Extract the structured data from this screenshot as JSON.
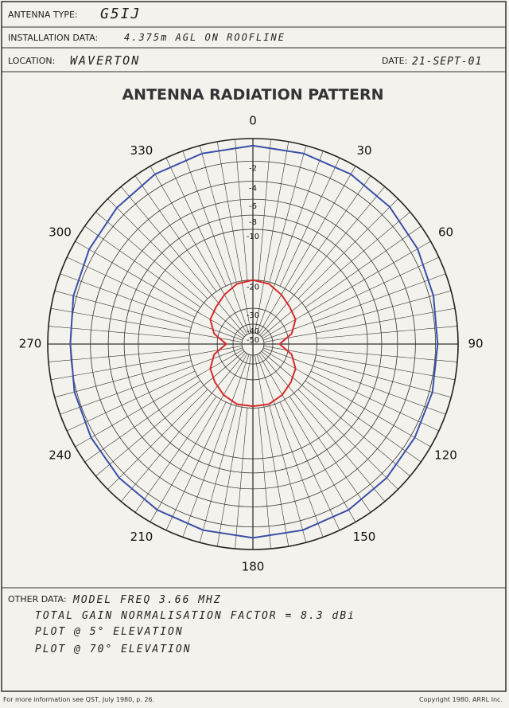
{
  "form": {
    "antenna_type_label": "ANTENNA TYPE:",
    "antenna_type": "G5IJ",
    "installation_label": "INSTALLATION DATA:",
    "installation": "4.375m AGL ON ROOFLINE",
    "location_label": "LOCATION:",
    "location": "WAVERTON",
    "date_label": "DATE:",
    "date": "21-SEPT-01",
    "other_label": "OTHER DATA:",
    "notes": [
      "MODEL FREQ   3.66 MHZ",
      "TOTAL GAIN NORMALISATION FACTOR = 8.3 dBi",
      "PLOT @ 5° ELEVATION",
      "PLOT @ 70° ELEVATION"
    ],
    "footer_left": "For more information see QST, July 1980, p. 26.",
    "footer_right": "Copyright 1980, ARRL Inc."
  },
  "chart_data": {
    "type": "polar",
    "title": "ANTENNA RADIATION PATTERN",
    "rscale": "arrl-log-periodic",
    "rmax": 0,
    "rticks": [
      -2,
      -4,
      -6,
      -8,
      -10,
      -20,
      -30,
      -40,
      -50
    ],
    "angle_ticks": [
      0,
      30,
      60,
      90,
      120,
      150,
      180,
      210,
      240,
      270,
      300,
      330
    ],
    "theta": [
      0,
      15,
      30,
      45,
      60,
      75,
      90,
      105,
      120,
      135,
      150,
      165,
      180,
      195,
      210,
      225,
      240,
      255,
      270,
      285,
      300,
      315,
      330,
      345
    ],
    "series": [
      {
        "color": "#d42a2a",
        "values": [
          -20,
          -20.5,
          -22,
          -23.5,
          -24.5,
          -28,
          -35,
          -28,
          -24.5,
          -23,
          -21.5,
          -20.5,
          -20.5,
          -20.5,
          -21.5,
          -23,
          -24.5,
          -28,
          -35,
          -28,
          -24.5,
          -23.5,
          -22,
          -20.5
        ]
      },
      {
        "color": "#3a4fa8",
        "values": [
          -0.6,
          -0.7,
          -0.8,
          -1,
          -1.3,
          -1.6,
          -1.8,
          -1.7,
          -1.6,
          -1.4,
          -1.2,
          -1.1,
          -1,
          -1.1,
          -1.2,
          -1.4,
          -1.6,
          -1.8,
          -2,
          -1.7,
          -1.4,
          -1.1,
          -0.8,
          -0.7
        ]
      }
    ]
  }
}
